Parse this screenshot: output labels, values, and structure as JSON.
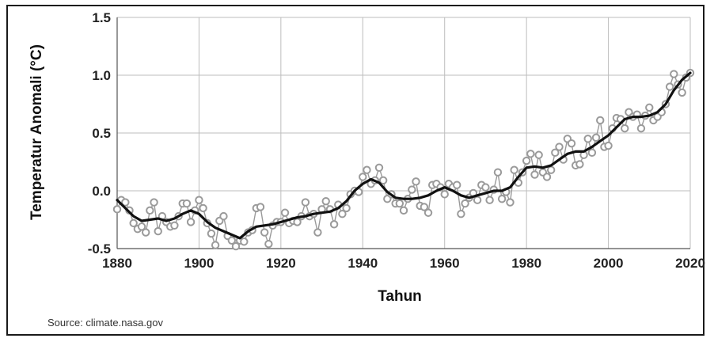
{
  "chart_data": {
    "type": "line",
    "xlabel": "Tahun",
    "ylabel": "Temperatur Anomali (°C)",
    "xlim": [
      1880,
      2020
    ],
    "ylim": [
      -0.5,
      1.5
    ],
    "x_ticks": [
      "1880",
      "1900",
      "1920",
      "1940",
      "1960",
      "1980",
      "2000",
      "2020"
    ],
    "y_ticks": [
      "-0.5",
      "0.0",
      "0.5",
      "1.0",
      "1.5"
    ],
    "grid": true,
    "source": "Source: climate.nasa.gov",
    "colors": {
      "annual": "#9a9a9a",
      "smooth": "#111111",
      "grid": "#bdbdbd"
    },
    "series": [
      {
        "style": "markers",
        "x": [
          1880,
          1881,
          1882,
          1883,
          1884,
          1885,
          1886,
          1887,
          1888,
          1889,
          1890,
          1891,
          1892,
          1893,
          1894,
          1895,
          1896,
          1897,
          1898,
          1899,
          1900,
          1901,
          1902,
          1903,
          1904,
          1905,
          1906,
          1907,
          1908,
          1909,
          1910,
          1911,
          1912,
          1913,
          1914,
          1915,
          1916,
          1917,
          1918,
          1919,
          1920,
          1921,
          1922,
          1923,
          1924,
          1925,
          1926,
          1927,
          1928,
          1929,
          1930,
          1931,
          1932,
          1933,
          1934,
          1935,
          1936,
          1937,
          1938,
          1939,
          1940,
          1941,
          1942,
          1943,
          1944,
          1945,
          1946,
          1947,
          1948,
          1949,
          1950,
          1951,
          1952,
          1953,
          1954,
          1955,
          1956,
          1957,
          1958,
          1959,
          1960,
          1961,
          1962,
          1963,
          1964,
          1965,
          1966,
          1967,
          1968,
          1969,
          1970,
          1971,
          1972,
          1973,
          1974,
          1975,
          1976,
          1977,
          1978,
          1979,
          1980,
          1981,
          1982,
          1983,
          1984,
          1985,
          1986,
          1987,
          1988,
          1989,
          1990,
          1991,
          1992,
          1993,
          1994,
          1995,
          1996,
          1997,
          1998,
          1999,
          2000,
          2001,
          2002,
          2003,
          2004,
          2005,
          2006,
          2007,
          2008,
          2009,
          2010,
          2011,
          2012,
          2013,
          2014,
          2015,
          2016,
          2017,
          2018,
          2019,
          2020
        ],
        "y": [
          -0.16,
          -0.08,
          -0.1,
          -0.17,
          -0.28,
          -0.33,
          -0.31,
          -0.36,
          -0.17,
          -0.1,
          -0.35,
          -0.22,
          -0.27,
          -0.31,
          -0.3,
          -0.22,
          -0.11,
          -0.11,
          -0.27,
          -0.17,
          -0.08,
          -0.15,
          -0.28,
          -0.37,
          -0.47,
          -0.26,
          -0.22,
          -0.39,
          -0.43,
          -0.48,
          -0.43,
          -0.44,
          -0.36,
          -0.34,
          -0.15,
          -0.14,
          -0.36,
          -0.46,
          -0.3,
          -0.27,
          -0.27,
          -0.19,
          -0.28,
          -0.26,
          -0.27,
          -0.22,
          -0.1,
          -0.22,
          -0.2,
          -0.36,
          -0.16,
          -0.09,
          -0.16,
          -0.29,
          -0.12,
          -0.2,
          -0.15,
          -0.03,
          -0.0,
          -0.01,
          0.12,
          0.18,
          0.06,
          0.09,
          0.2,
          0.09,
          -0.07,
          -0.03,
          -0.11,
          -0.11,
          -0.17,
          -0.07,
          0.01,
          0.08,
          -0.13,
          -0.14,
          -0.19,
          0.05,
          0.06,
          0.03,
          -0.03,
          0.06,
          0.03,
          0.05,
          -0.2,
          -0.11,
          -0.06,
          -0.02,
          -0.08,
          0.05,
          0.03,
          -0.08,
          0.01,
          0.16,
          -0.07,
          -0.01,
          -0.1,
          0.18,
          0.07,
          0.16,
          0.26,
          0.32,
          0.14,
          0.31,
          0.16,
          0.12,
          0.18,
          0.33,
          0.38,
          0.27,
          0.45,
          0.41,
          0.22,
          0.23,
          0.31,
          0.45,
          0.33,
          0.46,
          0.61,
          0.38,
          0.39,
          0.54,
          0.63,
          0.62,
          0.54,
          0.68,
          0.64,
          0.66,
          0.54,
          0.65,
          0.72,
          0.61,
          0.64,
          0.68,
          0.75,
          0.9,
          1.01,
          0.92,
          0.85,
          0.98,
          1.02
        ]
      },
      {
        "style": "line",
        "x": [
          1880,
          1882,
          1884,
          1886,
          1888,
          1890,
          1892,
          1894,
          1896,
          1898,
          1900,
          1902,
          1904,
          1906,
          1908,
          1910,
          1912,
          1914,
          1916,
          1918,
          1920,
          1922,
          1924,
          1926,
          1928,
          1930,
          1932,
          1934,
          1936,
          1938,
          1940,
          1942,
          1944,
          1946,
          1948,
          1950,
          1952,
          1954,
          1956,
          1958,
          1960,
          1962,
          1964,
          1966,
          1968,
          1970,
          1972,
          1974,
          1976,
          1978,
          1980,
          1982,
          1984,
          1986,
          1988,
          1990,
          1992,
          1994,
          1996,
          1998,
          2000,
          2002,
          2004,
          2006,
          2008,
          2010,
          2012,
          2014,
          2016,
          2018,
          2020
        ],
        "y": [
          -0.08,
          -0.15,
          -0.22,
          -0.26,
          -0.25,
          -0.24,
          -0.26,
          -0.24,
          -0.2,
          -0.17,
          -0.2,
          -0.27,
          -0.32,
          -0.35,
          -0.38,
          -0.41,
          -0.35,
          -0.31,
          -0.3,
          -0.29,
          -0.27,
          -0.25,
          -0.23,
          -0.22,
          -0.2,
          -0.19,
          -0.18,
          -0.15,
          -0.09,
          0.0,
          0.06,
          0.1,
          0.07,
          -0.01,
          -0.06,
          -0.07,
          -0.07,
          -0.06,
          -0.04,
          0.0,
          0.03,
          0.0,
          -0.04,
          -0.06,
          -0.04,
          -0.02,
          0.0,
          0.0,
          0.03,
          0.12,
          0.2,
          0.21,
          0.2,
          0.22,
          0.27,
          0.32,
          0.34,
          0.34,
          0.38,
          0.43,
          0.48,
          0.55,
          0.62,
          0.64,
          0.64,
          0.65,
          0.68,
          0.75,
          0.87,
          0.96,
          1.02
        ]
      }
    ]
  }
}
